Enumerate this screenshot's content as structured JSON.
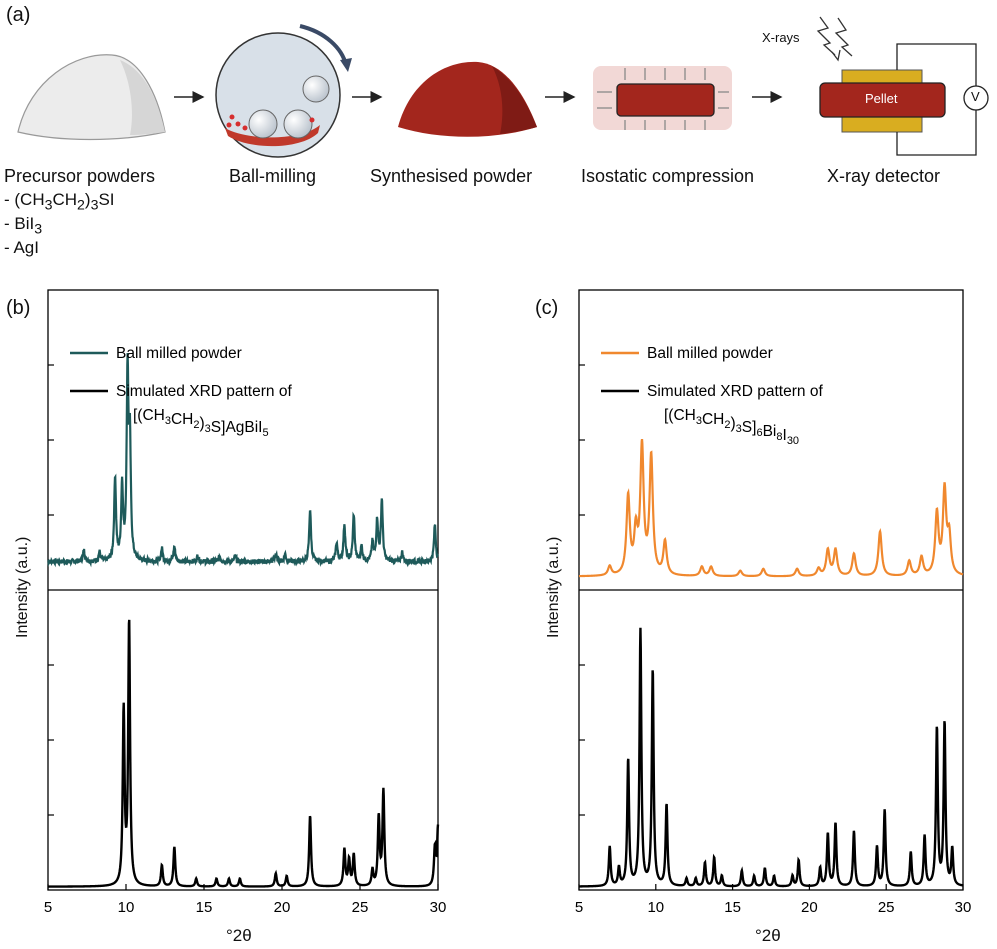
{
  "panels": {
    "a": "(a)",
    "b": "(b)",
    "c": "(c)"
  },
  "schematic": {
    "steps": [
      {
        "id": "precursor",
        "label": "Precursor powders"
      },
      {
        "id": "milling",
        "label": "Ball-milling"
      },
      {
        "id": "synth",
        "label": "Synthesised powder"
      },
      {
        "id": "iso",
        "label": "Isostatic compression"
      },
      {
        "id": "detector",
        "label": "X-ray detector"
      }
    ],
    "precursors": [
      "- (CH3CH2)3SI",
      "- BiI3",
      "- AgI"
    ],
    "xray_label": "X-rays",
    "pellet_label": "Pellet",
    "voltmeter_label": "V"
  },
  "chart_data": [
    {
      "type": "line",
      "panel": "b",
      "xlabel": "°2θ",
      "ylabel": "Intensity (a.u.)",
      "xlim": [
        5,
        30
      ],
      "xticks": [
        5,
        10,
        15,
        20,
        25,
        30
      ],
      "legend": {
        "position": "top-left",
        "entries": [
          {
            "label": "Ball milled powder",
            "color": "#1e5a5a"
          },
          {
            "label": "Simulated XRD pattern of",
            "label2": "[(CH3CH2)3S]AgBiI5",
            "color": "#000000"
          }
        ]
      },
      "series": [
        {
          "name": "Ball milled powder",
          "color": "#1e5a5a",
          "subplot": "top",
          "baseline": 0.12,
          "noise": 0.025,
          "peaks": [
            [
              7.3,
              0.06
            ],
            [
              8.3,
              0.05
            ],
            [
              9.3,
              0.45
            ],
            [
              9.75,
              0.4
            ],
            [
              10.1,
              1.0
            ],
            [
              10.25,
              0.6
            ],
            [
              12.3,
              0.07
            ],
            [
              13.1,
              0.08
            ],
            [
              14.6,
              0.03
            ],
            [
              16.0,
              0.03
            ],
            [
              17.0,
              0.03
            ],
            [
              19.6,
              0.04
            ],
            [
              20.2,
              0.04
            ],
            [
              21.8,
              0.28
            ],
            [
              23.5,
              0.1
            ],
            [
              24.0,
              0.2
            ],
            [
              24.6,
              0.25
            ],
            [
              25.1,
              0.08
            ],
            [
              25.8,
              0.1
            ],
            [
              26.1,
              0.22
            ],
            [
              26.4,
              0.33
            ],
            [
              27.7,
              0.05
            ],
            [
              29.8,
              0.2
            ]
          ],
          "width": 0.07
        },
        {
          "name": "[(CH3CH2)3S]AgBiI5",
          "color": "#000000",
          "subplot": "bottom",
          "baseline": 0.005,
          "noise": 0,
          "peaks": [
            [
              9.85,
              0.66
            ],
            [
              10.2,
              1.0
            ],
            [
              12.3,
              0.08
            ],
            [
              13.1,
              0.15
            ],
            [
              14.5,
              0.03
            ],
            [
              15.8,
              0.03
            ],
            [
              16.6,
              0.03
            ],
            [
              17.3,
              0.03
            ],
            [
              19.6,
              0.05
            ],
            [
              20.3,
              0.04
            ],
            [
              21.8,
              0.27
            ],
            [
              24.0,
              0.14
            ],
            [
              24.3,
              0.1
            ],
            [
              24.6,
              0.12
            ],
            [
              25.8,
              0.06
            ],
            [
              26.2,
              0.26
            ],
            [
              26.5,
              0.36
            ],
            [
              29.8,
              0.14
            ],
            [
              30.0,
              0.22
            ]
          ],
          "width": 0.07
        }
      ]
    },
    {
      "type": "line",
      "panel": "c",
      "xlabel": "°2θ",
      "ylabel": "Intensity (a.u.)",
      "xlim": [
        5,
        30
      ],
      "xticks": [
        5,
        10,
        15,
        20,
        25,
        30
      ],
      "legend": {
        "position": "top-left",
        "entries": [
          {
            "label": "Ball milled powder",
            "color": "#f0882e"
          },
          {
            "label": "Simulated XRD pattern of",
            "label2": "[(CH3CH2)3S]6Bi8I30",
            "color": "#000000"
          }
        ]
      },
      "series": [
        {
          "name": "Ball milled powder",
          "color": "#f0882e",
          "subplot": "top",
          "baseline": 0.04,
          "noise": 0.0,
          "peaks": [
            [
              7.0,
              0.05
            ],
            [
              8.2,
              0.42
            ],
            [
              8.7,
              0.22
            ],
            [
              9.1,
              0.68
            ],
            [
              9.7,
              0.63
            ],
            [
              10.6,
              0.18
            ],
            [
              13.0,
              0.05
            ],
            [
              13.6,
              0.05
            ],
            [
              15.5,
              0.03
            ],
            [
              17.0,
              0.04
            ],
            [
              19.2,
              0.04
            ],
            [
              20.6,
              0.04
            ],
            [
              21.2,
              0.14
            ],
            [
              21.7,
              0.14
            ],
            [
              22.9,
              0.12
            ],
            [
              24.6,
              0.24
            ],
            [
              26.5,
              0.08
            ],
            [
              27.3,
              0.1
            ],
            [
              28.3,
              0.33
            ],
            [
              28.8,
              0.45
            ],
            [
              29.1,
              0.2
            ]
          ],
          "width": 0.13
        },
        {
          "name": "[(CH3CH2)3S]6Bi8I30",
          "color": "#000000",
          "subplot": "bottom",
          "baseline": 0.005,
          "noise": 0,
          "peaks": [
            [
              7.0,
              0.15
            ],
            [
              7.6,
              0.07
            ],
            [
              8.2,
              0.48
            ],
            [
              9.0,
              0.97
            ],
            [
              9.8,
              0.82
            ],
            [
              10.7,
              0.31
            ],
            [
              12.0,
              0.03
            ],
            [
              12.6,
              0.03
            ],
            [
              13.2,
              0.09
            ],
            [
              13.8,
              0.11
            ],
            [
              14.3,
              0.04
            ],
            [
              15.6,
              0.06
            ],
            [
              16.4,
              0.04
            ],
            [
              17.1,
              0.07
            ],
            [
              17.7,
              0.04
            ],
            [
              18.9,
              0.04
            ],
            [
              19.3,
              0.1
            ],
            [
              20.7,
              0.07
            ],
            [
              21.2,
              0.2
            ],
            [
              21.7,
              0.24
            ],
            [
              22.9,
              0.21
            ],
            [
              24.4,
              0.15
            ],
            [
              24.9,
              0.29
            ],
            [
              26.6,
              0.13
            ],
            [
              27.5,
              0.19
            ],
            [
              28.3,
              0.6
            ],
            [
              28.8,
              0.62
            ],
            [
              29.3,
              0.14
            ]
          ],
          "width": 0.07
        }
      ]
    }
  ]
}
